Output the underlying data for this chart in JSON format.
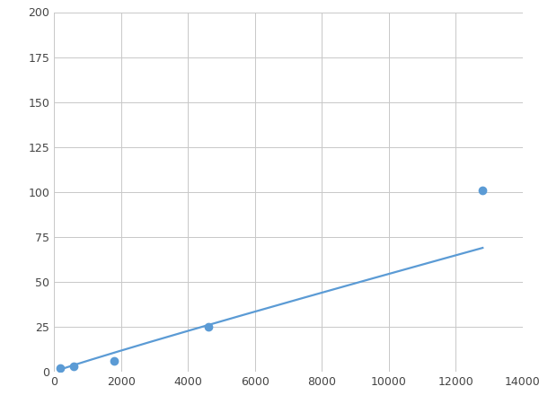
{
  "x": [
    200,
    600,
    1800,
    4600,
    12800
  ],
  "y": [
    2,
    3,
    6,
    25,
    101
  ],
  "line_color": "#5B9BD5",
  "marker_color": "#5B9BD5",
  "marker_size": 6,
  "line_width": 1.6,
  "xlim": [
    0,
    14000
  ],
  "ylim": [
    0,
    200
  ],
  "xticks": [
    0,
    2000,
    4000,
    6000,
    8000,
    10000,
    12000,
    14000
  ],
  "yticks": [
    0,
    25,
    50,
    75,
    100,
    125,
    150,
    175,
    200
  ],
  "grid": true,
  "grid_color": "#C8C8C8",
  "background_color": "#FFFFFF",
  "figsize": [
    6.0,
    4.5
  ],
  "dpi": 100
}
